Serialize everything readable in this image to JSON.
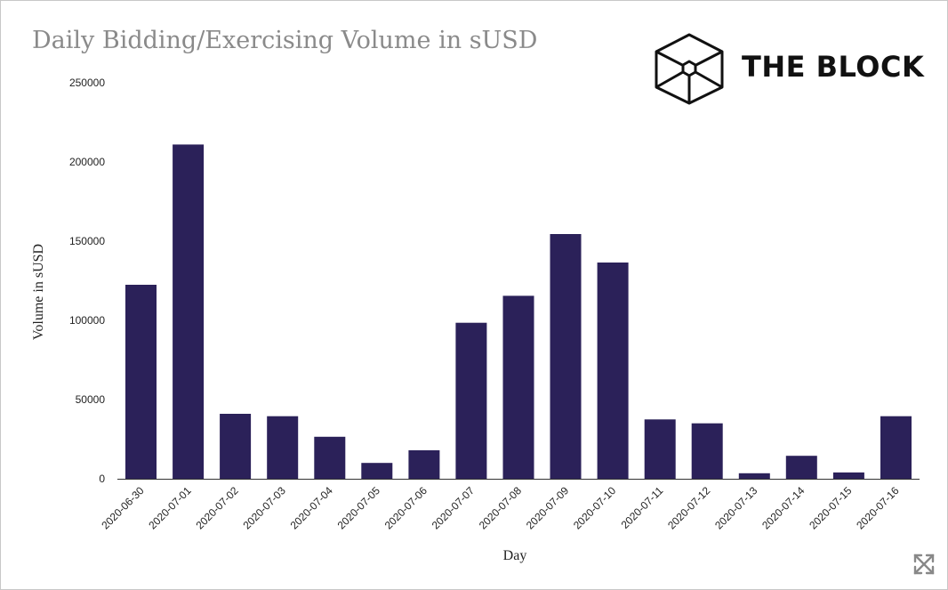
{
  "header": {
    "title": "Daily Bidding/Exercising Volume in sUSD"
  },
  "logo": {
    "text": "THE BLOCK",
    "icon": "cube-icon"
  },
  "controls": {
    "expand_icon": "expand-icon"
  },
  "colors": {
    "bar": "#2b2159",
    "title": "#8a8a8a"
  },
  "chart_data": {
    "type": "bar",
    "title": "Daily Bidding/Exercising Volume in sUSD",
    "xlabel": "Day",
    "ylabel": "Volume in sUSD",
    "ylim": [
      0,
      250000
    ],
    "yticks": [
      0,
      50000,
      100000,
      150000,
      200000,
      250000
    ],
    "grid": false,
    "categories": [
      "2020-06-30",
      "2020-07-01",
      "2020-07-02",
      "2020-07-03",
      "2020-07-04",
      "2020-07-05",
      "2020-07-06",
      "2020-07-07",
      "2020-07-08",
      "2020-07-09",
      "2020-07-10",
      "2020-07-11",
      "2020-07-12",
      "2020-07-13",
      "2020-07-14",
      "2020-07-15",
      "2020-07-16"
    ],
    "values": [
      122500,
      211000,
      41000,
      39500,
      26500,
      10000,
      18000,
      98500,
      115500,
      154500,
      136500,
      37500,
      35000,
      3500,
      14500,
      4000,
      39500
    ]
  }
}
